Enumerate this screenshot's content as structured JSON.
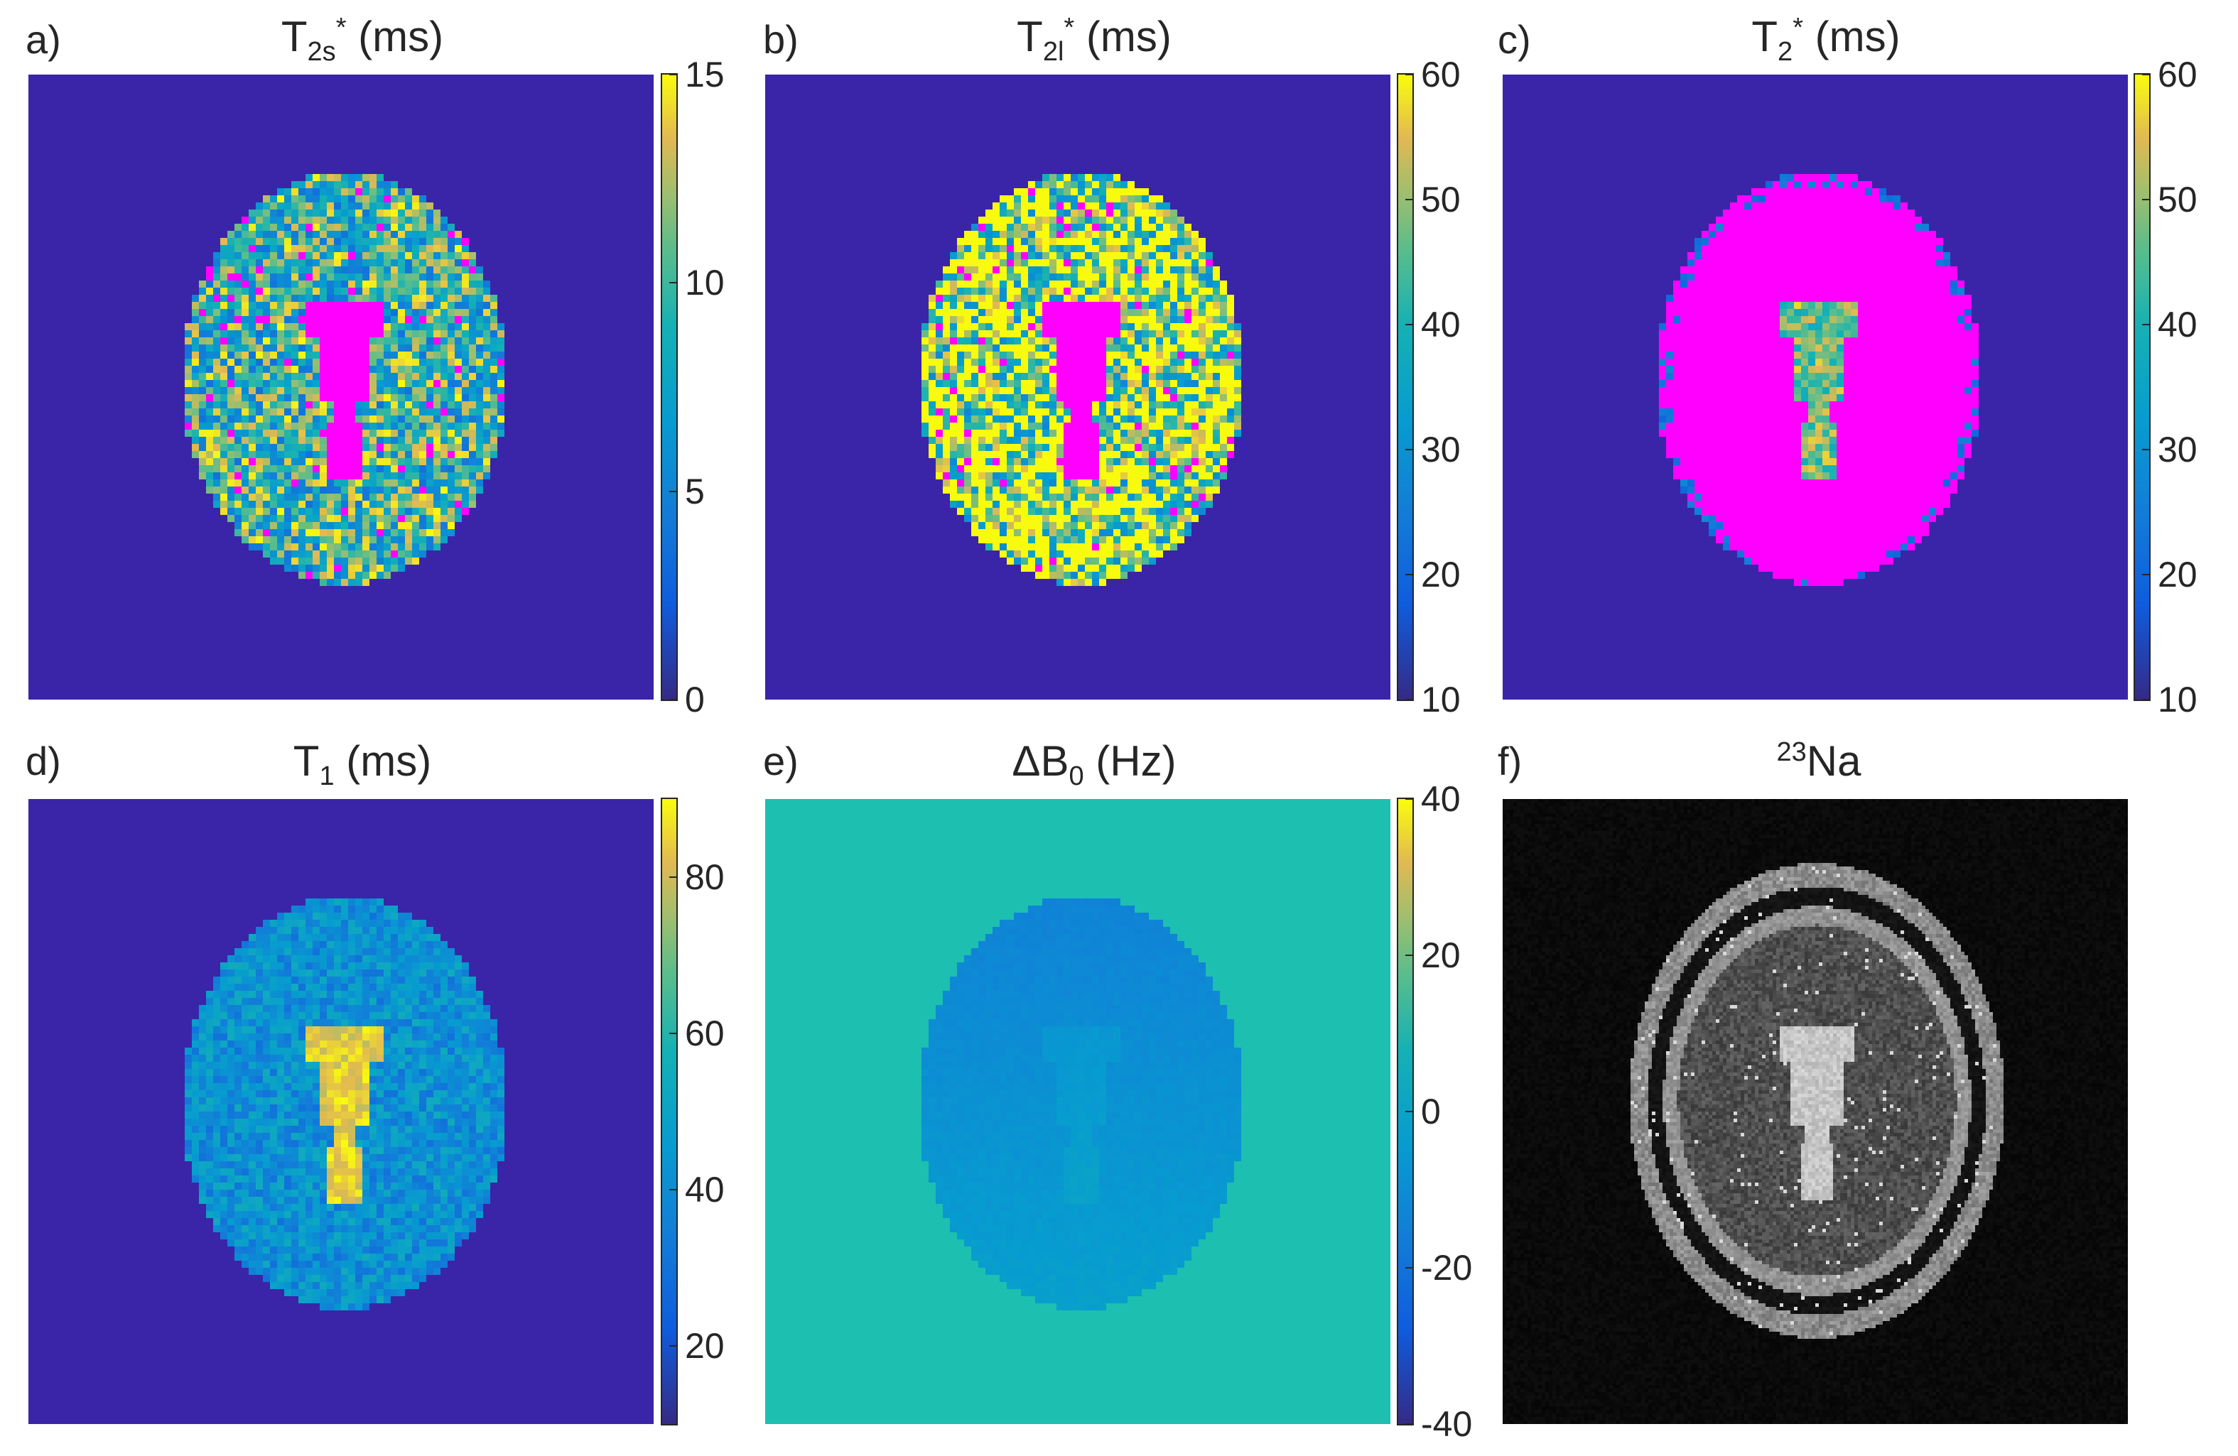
{
  "figure": {
    "panels": [
      {
        "id": "a",
        "letter": "a)",
        "title_main": "T",
        "title_sub": "2s",
        "title_sup": "*",
        "title_tail": " (ms)",
        "pattern": "t2s",
        "colorbar": {
          "ticks": [
            "15",
            "10",
            "5",
            "0"
          ],
          "min": 0,
          "max": 15
        }
      },
      {
        "id": "b",
        "letter": "b)",
        "title_main": "T",
        "title_sub": "2l",
        "title_sup": "*",
        "title_tail": " (ms)",
        "pattern": "t2l",
        "colorbar": {
          "ticks": [
            "60",
            "50",
            "40",
            "30",
            "20",
            "10"
          ],
          "min": 10,
          "max": 60
        }
      },
      {
        "id": "c",
        "letter": "c)",
        "title_main": "T",
        "title_sub": "2",
        "title_sup": "*",
        "title_tail": " (ms)",
        "pattern": "t2",
        "colorbar": {
          "ticks": [
            "60",
            "50",
            "40",
            "30",
            "20",
            "10"
          ],
          "min": 10,
          "max": 60
        }
      },
      {
        "id": "d",
        "letter": "d)",
        "title_main": "T",
        "title_sub": "1",
        "title_sup": "",
        "title_tail": " (ms)",
        "pattern": "t1",
        "colorbar": {
          "ticks": [
            "80",
            "60",
            "40",
            "20"
          ],
          "min": 10,
          "max": 90
        }
      },
      {
        "id": "e",
        "letter": "e)",
        "title_main": "ΔB",
        "title_sub": "0",
        "title_sup": "",
        "title_tail": " (Hz)",
        "pattern": "b0",
        "colorbar": {
          "ticks": [
            "40",
            "20",
            "0",
            "-20",
            "-40"
          ],
          "min": -40,
          "max": 40
        }
      },
      {
        "id": "f",
        "letter": "f)",
        "title_main": "Na",
        "title_sub": "",
        "title_sup": "23",
        "title_tail": "",
        "pattern": "na",
        "colorbar": null
      }
    ],
    "colors": {
      "background_map": "#3a25a8",
      "masked_pixel": "#ff00ff",
      "b0_background": "#1dbfb0",
      "na_background": "#000000"
    }
  }
}
